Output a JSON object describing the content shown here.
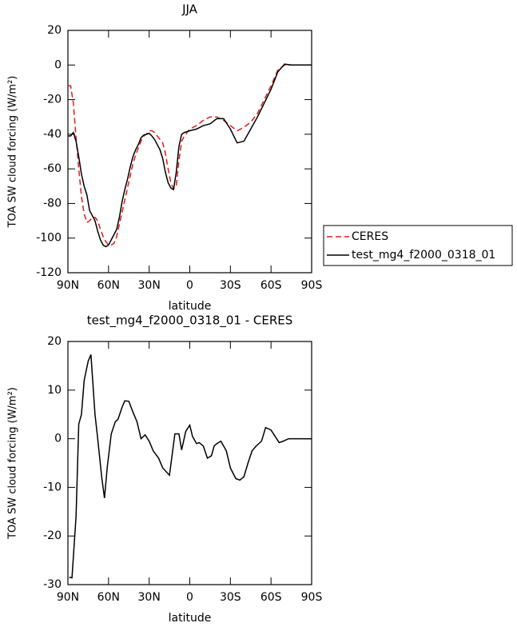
{
  "chart_data": [
    {
      "type": "line",
      "title": "JJA",
      "x_label": "latitude",
      "y_label": "TOA SW cloud forcing (W/m²)",
      "x": [
        90,
        88,
        86,
        84,
        82,
        80,
        78,
        76,
        74,
        72,
        70,
        68,
        66,
        64,
        62,
        60,
        58,
        56,
        54,
        52,
        50,
        48,
        46,
        44,
        42,
        40,
        38,
        36,
        34,
        32,
        30,
        28,
        26,
        24,
        22,
        20,
        18,
        16,
        14,
        12,
        10,
        8,
        6,
        4,
        2,
        0,
        -5,
        -10,
        -15,
        -20,
        -25,
        -30,
        -35,
        -40,
        -45,
        -50,
        -55,
        -60,
        -65,
        -70,
        -75,
        -80,
        -85,
        -90
      ],
      "series": [
        {
          "name": "CERES",
          "color": "#e41a1c",
          "dashed": true,
          "values": [
            -12,
            -12,
            -22,
            -42,
            -60,
            -76,
            -86,
            -91,
            -90,
            -88,
            -88,
            -90,
            -95,
            -99,
            -102,
            -104,
            -104,
            -103,
            -99,
            -92,
            -85,
            -78,
            -71,
            -64,
            -57,
            -52,
            -48,
            -44,
            -41,
            -40,
            -38,
            -38,
            -39,
            -41,
            -43,
            -45,
            -51,
            -60,
            -68,
            -71.5,
            -70,
            -55,
            -44,
            -41,
            -39,
            -37,
            -35,
            -32,
            -30,
            -30,
            -32,
            -35,
            -38,
            -36,
            -33,
            -28,
            -20,
            -12,
            -3,
            0,
            0,
            0,
            0,
            0
          ]
        },
        {
          "name": "test_mg4_f2000_0318_01",
          "color": "#000000",
          "dashed": false,
          "values": [
            -41,
            -41,
            -39,
            -44,
            -53,
            -63,
            -70,
            -75,
            -84,
            -87,
            -90,
            -96,
            -101,
            -104,
            -105,
            -104,
            -101,
            -98,
            -95,
            -88,
            -79,
            -72,
            -66,
            -59,
            -53,
            -49,
            -46,
            -42,
            -40.5,
            -40,
            -39.5,
            -41,
            -43,
            -46,
            -49,
            -54,
            -62,
            -68,
            -71,
            -72,
            -62,
            -47,
            -40,
            -39,
            -38.5,
            -38,
            -37,
            -35,
            -34,
            -31,
            -31,
            -37,
            -45,
            -44,
            -37,
            -30,
            -22,
            -14,
            -4,
            0.5,
            0,
            0,
            0,
            0
          ]
        }
      ],
      "xlim": [
        90,
        -90
      ],
      "xticks": [
        {
          "value": 90,
          "label": "90N"
        },
        {
          "value": 60,
          "label": "60N"
        },
        {
          "value": 30,
          "label": "30N"
        },
        0,
        {
          "value": -30,
          "label": "30S"
        },
        {
          "value": -60,
          "label": "60S"
        },
        {
          "value": -90,
          "label": "90S"
        }
      ],
      "ylim": [
        -120,
        20
      ],
      "yticks": [
        -120,
        -100,
        -80,
        -60,
        -40,
        -20,
        0,
        20
      ],
      "legend": "outside-right"
    },
    {
      "type": "line",
      "title": "test_mg4_f2000_0318_01 - CERES",
      "x_label": "latitude",
      "y_label": "TOA SW cloud forcing (W/m²)",
      "x": [
        89,
        87,
        84,
        82,
        80,
        78,
        75,
        73,
        70,
        68,
        65,
        63,
        61,
        58,
        55,
        53,
        50,
        48,
        45,
        42,
        39,
        36,
        33,
        30,
        27,
        23,
        20,
        15,
        11,
        8,
        6,
        3,
        0,
        -2,
        -5,
        -7,
        -10,
        -13,
        -16,
        -18,
        -20,
        -23,
        -27,
        -30,
        -34,
        -37,
        -40,
        -43,
        -46,
        -49,
        -53,
        -56,
        -60,
        -63,
        -66,
        -69,
        -73,
        -90
      ],
      "values": [
        -28.5,
        -28.6,
        -16,
        3,
        5,
        12,
        16,
        17.3,
        5,
        0,
        -8,
        -12.2,
        -6,
        1,
        3.5,
        4,
        6.5,
        7.8,
        7.7,
        5.5,
        3.5,
        0,
        0.8,
        -0.5,
        -2.5,
        -4,
        -6,
        -7.5,
        1,
        1,
        -2.3,
        1.5,
        2.8,
        0.5,
        -1,
        -0.8,
        -1.5,
        -4,
        -3.5,
        -1.5,
        -1,
        -0.5,
        -2.5,
        -6,
        -8.2,
        -8.5,
        -7.8,
        -5,
        -2.5,
        -1.5,
        -0.5,
        2.3,
        1.8,
        0.5,
        -0.8,
        -0.5,
        0,
        0
      ],
      "color": "#000000",
      "xlim": [
        90,
        -90
      ],
      "xticks": [
        {
          "value": 90,
          "label": "90N"
        },
        {
          "value": 60,
          "label": "60N"
        },
        {
          "value": 30,
          "label": "30N"
        },
        0,
        {
          "value": -30,
          "label": "30S"
        },
        {
          "value": -60,
          "label": "60S"
        },
        {
          "value": -90,
          "label": "90S"
        }
      ],
      "ylim": [
        -30,
        20
      ],
      "yticks": [
        -30,
        -20,
        -10,
        0,
        10,
        20
      ]
    }
  ]
}
